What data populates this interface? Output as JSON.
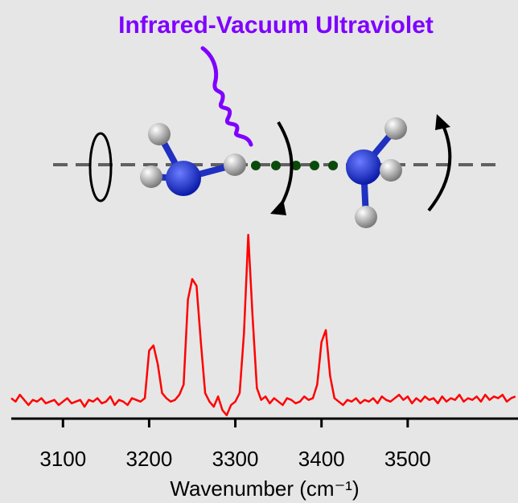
{
  "chart_data": {
    "type": "line",
    "title": "Infrared-Vacuum Ultraviolet",
    "xlabel": "Wavenumber  (cm⁻¹)",
    "color": "#ff0000",
    "x": [
      3040,
      3045,
      3050,
      3055,
      3060,
      3065,
      3070,
      3075,
      3080,
      3085,
      3090,
      3095,
      3100,
      3105,
      3110,
      3115,
      3120,
      3125,
      3130,
      3135,
      3140,
      3145,
      3150,
      3155,
      3160,
      3165,
      3170,
      3175,
      3180,
      3185,
      3190,
      3195,
      3200,
      3205,
      3210,
      3215,
      3220,
      3225,
      3230,
      3235,
      3240,
      3245,
      3250,
      3255,
      3260,
      3265,
      3270,
      3275,
      3280,
      3285,
      3290,
      3295,
      3300,
      3305,
      3310,
      3315,
      3320,
      3325,
      3330,
      3335,
      3340,
      3345,
      3350,
      3355,
      3360,
      3365,
      3370,
      3375,
      3380,
      3385,
      3390,
      3395,
      3400,
      3405,
      3410,
      3415,
      3420,
      3425,
      3430,
      3435,
      3440,
      3445,
      3450,
      3455,
      3460,
      3465,
      3470,
      3475,
      3480,
      3485,
      3490,
      3495,
      3500,
      3505,
      3510,
      3515,
      3520,
      3525,
      3530,
      3535,
      3540,
      3545,
      3550,
      3555,
      3560,
      3565,
      3570,
      3575,
      3580,
      3585,
      3590,
      3595,
      3600,
      3605,
      3610,
      3615,
      3620,
      3625
    ],
    "values": [
      0.02,
      0.0,
      0.04,
      0.01,
      -0.02,
      0.01,
      0.0,
      0.02,
      -0.01,
      0.0,
      0.01,
      -0.02,
      0.0,
      0.02,
      -0.01,
      0.0,
      0.01,
      -0.03,
      0.01,
      0.0,
      0.02,
      -0.01,
      0.0,
      0.03,
      -0.02,
      0.01,
      0.0,
      -0.02,
      0.02,
      0.01,
      0.0,
      0.02,
      0.3,
      0.33,
      0.22,
      0.05,
      0.02,
      0.0,
      0.01,
      0.04,
      0.1,
      0.6,
      0.72,
      0.68,
      0.35,
      0.05,
      0.0,
      -0.03,
      0.03,
      -0.05,
      -0.08,
      -0.02,
      0.0,
      0.05,
      0.4,
      0.98,
      0.5,
      0.08,
      0.01,
      0.03,
      -0.01,
      0.02,
      0.0,
      -0.02,
      0.02,
      0.01,
      -0.01,
      0.0,
      0.03,
      0.01,
      0.02,
      0.1,
      0.35,
      0.42,
      0.15,
      0.02,
      0.0,
      -0.02,
      0.01,
      0.0,
      0.02,
      -0.01,
      0.01,
      0.0,
      0.02,
      -0.01,
      0.03,
      0.01,
      0.0,
      0.02,
      0.04,
      0.01,
      0.03,
      -0.01,
      0.02,
      0.0,
      0.03,
      0.01,
      0.02,
      -0.01,
      0.03,
      0.0,
      0.02,
      0.01,
      0.04,
      0.0,
      0.02,
      0.01,
      0.03,
      0.0,
      0.04,
      0.01,
      0.03,
      0.02,
      0.04,
      0.0,
      0.02,
      0.03
    ],
    "xlim": [
      3040,
      3628
    ],
    "xticks": [
      3100,
      3200,
      3300,
      3400,
      3500
    ],
    "ylim": [
      -0.1,
      1.0
    ]
  }
}
